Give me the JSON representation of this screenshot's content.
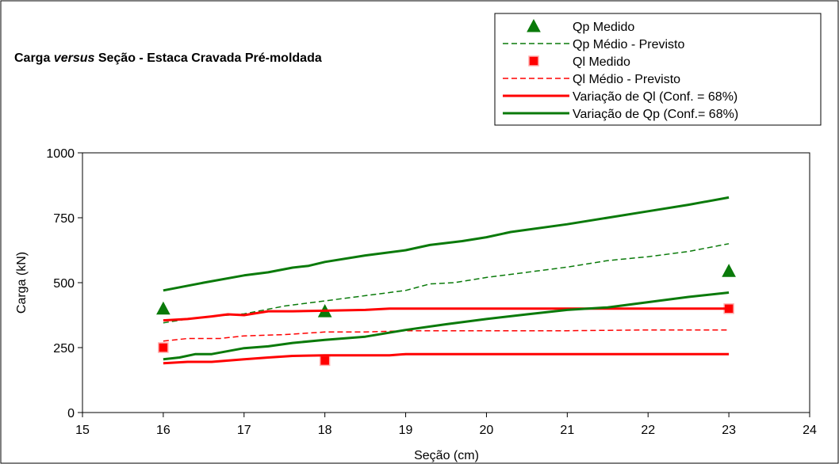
{
  "chart_data": {
    "type": "line",
    "title": {
      "part1": "Carga ",
      "part2": "versus",
      "part3": " Seção - Estaca Cravada Pré-moldada"
    },
    "xlabel": "Seção (cm)",
    "ylabel": "Carga (kN)",
    "xlim": [
      15,
      24
    ],
    "ylim": [
      0,
      1000
    ],
    "xticks": [
      "15",
      "16",
      "17",
      "18",
      "19",
      "20",
      "21",
      "22",
      "23",
      "24"
    ],
    "yticks": [
      "0",
      "250",
      "500",
      "750",
      "1000"
    ],
    "grid": false,
    "legend_position": "top-right",
    "colors": {
      "green": "#0a7a0a",
      "red": "#ff0000"
    },
    "series": [
      {
        "name": "Qp Medido",
        "kind": "marker-triangle",
        "color": "#0a7a0a",
        "points": [
          [
            16,
            400
          ],
          [
            18,
            390
          ],
          [
            23,
            545
          ]
        ]
      },
      {
        "name": "Qp Médio - Previsto",
        "kind": "line-dashed",
        "color": "#0a7a0a",
        "points": [
          [
            16,
            345
          ],
          [
            16.3,
            360
          ],
          [
            16.6,
            370
          ],
          [
            17,
            380
          ],
          [
            17.5,
            410
          ],
          [
            18,
            430
          ],
          [
            18.5,
            450
          ],
          [
            19,
            470
          ],
          [
            19.3,
            495
          ],
          [
            19.6,
            500
          ],
          [
            20,
            520
          ],
          [
            20.5,
            540
          ],
          [
            21,
            560
          ],
          [
            21.5,
            585
          ],
          [
            22,
            600
          ],
          [
            22.5,
            620
          ],
          [
            23,
            650
          ]
        ]
      },
      {
        "name": "Ql Medido",
        "kind": "marker-square",
        "color": "#ff0000",
        "points": [
          [
            16,
            250
          ],
          [
            18,
            200
          ],
          [
            23,
            400
          ]
        ]
      },
      {
        "name": "Ql Médio - Previsto",
        "kind": "line-dashed",
        "color": "#ff0000",
        "points": [
          [
            16,
            275
          ],
          [
            16.3,
            285
          ],
          [
            16.7,
            285
          ],
          [
            17,
            295
          ],
          [
            17.5,
            300
          ],
          [
            18,
            310
          ],
          [
            18.5,
            310
          ],
          [
            19,
            315
          ],
          [
            20,
            315
          ],
          [
            21,
            315
          ],
          [
            22,
            318
          ],
          [
            23,
            318
          ]
        ]
      },
      {
        "name": "Variação de Ql (Conf. = 68%)",
        "kind": "line-solid",
        "color": "#ff0000",
        "points": [
          [
            16,
            190
          ],
          [
            16.3,
            195
          ],
          [
            16.6,
            195
          ],
          [
            17,
            205
          ],
          [
            17.3,
            212
          ],
          [
            17.6,
            218
          ],
          [
            18,
            220
          ],
          [
            18.5,
            220
          ],
          [
            18.8,
            220
          ],
          [
            19,
            225
          ],
          [
            20,
            225
          ],
          [
            21,
            225
          ],
          [
            22,
            225
          ],
          [
            23,
            225
          ]
        ]
      },
      {
        "name": "Variação de Ql (Conf. = 68%)",
        "kind": "line-solid",
        "color": "#ff0000",
        "points": [
          [
            16,
            355
          ],
          [
            16.3,
            360
          ],
          [
            16.6,
            370
          ],
          [
            16.8,
            378
          ],
          [
            17,
            375
          ],
          [
            17.3,
            390
          ],
          [
            17.6,
            390
          ],
          [
            18,
            392
          ],
          [
            18.5,
            395
          ],
          [
            18.8,
            400
          ],
          [
            19,
            400
          ],
          [
            20,
            400
          ],
          [
            21,
            400
          ],
          [
            22,
            400
          ],
          [
            23,
            400
          ]
        ]
      },
      {
        "name": "Variação de Qp (Conf.= 68%)",
        "kind": "line-solid",
        "color": "#0a7a0a",
        "points": [
          [
            16,
            470
          ],
          [
            16.5,
            500
          ],
          [
            17,
            528
          ],
          [
            17.3,
            540
          ],
          [
            17.6,
            558
          ],
          [
            17.8,
            565
          ],
          [
            18,
            580
          ],
          [
            18.5,
            605
          ],
          [
            19,
            625
          ],
          [
            19.3,
            645
          ],
          [
            19.7,
            660
          ],
          [
            20,
            675
          ],
          [
            20.3,
            695
          ],
          [
            21,
            725
          ],
          [
            21.5,
            750
          ],
          [
            22,
            775
          ],
          [
            22.5,
            800
          ],
          [
            23,
            828
          ]
        ]
      },
      {
        "name": "Variação de Qp (Conf.= 68%)",
        "kind": "line-solid",
        "color": "#0a7a0a",
        "points": [
          [
            16,
            205
          ],
          [
            16.2,
            212
          ],
          [
            16.4,
            225
          ],
          [
            16.6,
            225
          ],
          [
            17,
            248
          ],
          [
            17.3,
            255
          ],
          [
            17.6,
            268
          ],
          [
            18,
            280
          ],
          [
            18.5,
            292
          ],
          [
            19,
            318
          ],
          [
            19.5,
            340
          ],
          [
            20,
            360
          ],
          [
            20.5,
            378
          ],
          [
            21,
            395
          ],
          [
            21.5,
            405
          ],
          [
            22,
            425
          ],
          [
            22.5,
            445
          ],
          [
            23,
            462
          ]
        ]
      }
    ]
  }
}
